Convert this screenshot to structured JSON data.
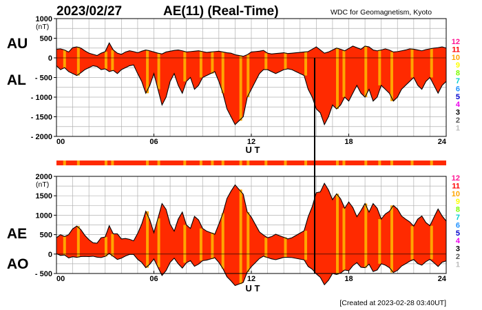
{
  "header": {
    "date": "2023/02/27",
    "title": "AE(11) (Real-Time)",
    "source": "WDC for Geomagnetism, Kyoto"
  },
  "footer": {
    "created": "[Created at 2023-02-28 03:40UT]"
  },
  "colors": {
    "fill": "#ff2a00",
    "stripe": "#ffa500",
    "grid": "#b0b0b0",
    "line": "#000000"
  },
  "station_scale": [
    {
      "label": "12",
      "color": "#ff1493"
    },
    {
      "label": "11",
      "color": "#ff0000"
    },
    {
      "label": "10",
      "color": "#ffa500"
    },
    {
      "label": "9",
      "color": "#ffff00"
    },
    {
      "label": "8",
      "color": "#7cfc00"
    },
    {
      "label": "7",
      "color": "#00ced1"
    },
    {
      "label": "6",
      "color": "#1e90ff"
    },
    {
      "label": "5",
      "color": "#0000cd"
    },
    {
      "label": "4",
      "color": "#ee00ee"
    },
    {
      "label": "3",
      "color": "#000000"
    },
    {
      "label": "2",
      "color": "#555555"
    },
    {
      "label": "1",
      "color": "#bbbbbb"
    }
  ],
  "orange_stripe_hours": [
    0.5,
    1.35,
    3.05,
    3.45,
    5.6,
    6.3,
    7.9,
    8.9,
    9.6,
    10.25,
    11.35,
    11.8,
    12.9,
    14.1,
    15.35,
    17.3,
    17.7,
    19.05,
    19.9,
    20.65,
    21.9,
    23.1
  ],
  "chart_data": [
    {
      "type": "area",
      "panel": "AU/AL",
      "series_labels": [
        "AU",
        "AL"
      ],
      "unit": "(nT)",
      "xlabel": "U T",
      "xlim": [
        0,
        24
      ],
      "xticks": [
        0,
        6,
        12,
        18,
        24
      ],
      "xtick_labels": [
        "00",
        "06",
        "12",
        "18",
        "24"
      ],
      "ylim": [
        -2000,
        1000
      ],
      "yticks": [
        1000,
        500,
        0,
        -500,
        -1000,
        -1500,
        -2000
      ],
      "ytick_labels": [
        "1000",
        "500",
        "0",
        "- 500",
        "- 1000",
        "- 1500",
        "- 2000"
      ],
      "grid": true,
      "x": [
        0,
        0.25,
        0.5,
        0.75,
        1,
        1.25,
        1.5,
        1.75,
        2,
        2.25,
        2.5,
        2.75,
        3,
        3.25,
        3.5,
        3.75,
        4,
        4.25,
        4.5,
        4.75,
        5,
        5.25,
        5.5,
        5.75,
        6,
        6.25,
        6.5,
        6.75,
        7,
        7.25,
        7.5,
        7.75,
        8,
        8.25,
        8.5,
        8.75,
        9,
        9.25,
        9.5,
        9.75,
        10,
        10.25,
        10.5,
        10.75,
        11,
        11.25,
        11.5,
        11.75,
        12,
        12.25,
        12.5,
        12.75,
        13,
        13.25,
        13.5,
        13.75,
        14,
        14.25,
        14.5,
        14.75,
        15,
        15.25,
        15.5,
        15.75,
        16,
        16.25,
        16.5,
        16.75,
        17,
        17.25,
        17.5,
        17.75,
        18,
        18.25,
        18.5,
        18.75,
        19,
        19.25,
        19.5,
        19.75,
        20,
        20.25,
        20.5,
        20.75,
        21,
        21.25,
        21.5,
        21.75,
        22,
        22.25,
        22.5,
        22.75,
        23,
        23.25,
        23.5,
        23.75,
        24
      ],
      "series": [
        {
          "name": "AU",
          "values": [
            220,
            230,
            200,
            150,
            260,
            280,
            250,
            180,
            120,
            90,
            60,
            120,
            160,
            380,
            200,
            120,
            90,
            150,
            180,
            160,
            130,
            170,
            200,
            180,
            150,
            120,
            100,
            150,
            170,
            190,
            200,
            180,
            150,
            160,
            170,
            180,
            160,
            140,
            150,
            160,
            170,
            150,
            130,
            120,
            80,
            60,
            40,
            80,
            150,
            160,
            170,
            190,
            120,
            100,
            110,
            120,
            130,
            110,
            120,
            130,
            140,
            150,
            160,
            220,
            280,
            200,
            120,
            150,
            200,
            250,
            220,
            180,
            240,
            300,
            260,
            220,
            300,
            280,
            200,
            180,
            200,
            230,
            200,
            150,
            160,
            180,
            200,
            230,
            220,
            200,
            180,
            210,
            230,
            250,
            260,
            280,
            250
          ]
        },
        {
          "name": "AL",
          "values": [
            -200,
            -300,
            -250,
            -350,
            -400,
            -450,
            -380,
            -300,
            -250,
            -200,
            -220,
            -300,
            -280,
            -350,
            -320,
            -400,
            -300,
            -250,
            -200,
            -180,
            -400,
            -600,
            -900,
            -700,
            -400,
            -800,
            -1200,
            -1000,
            -600,
            -400,
            -700,
            -900,
            -600,
            -500,
            -800,
            -700,
            -500,
            -450,
            -400,
            -350,
            -600,
            -900,
            -1300,
            -1500,
            -1700,
            -1600,
            -1500,
            -1000,
            -800,
            -600,
            -400,
            -300,
            -300,
            -350,
            -400,
            -350,
            -300,
            -280,
            -300,
            -350,
            -400,
            -450,
            -800,
            -1000,
            -1300,
            -1400,
            -1700,
            -1500,
            -1200,
            -1300,
            -1200,
            -1000,
            -1100,
            -900,
            -700,
            -900,
            -1000,
            -800,
            -1100,
            -1000,
            -700,
            -800,
            -900,
            -1100,
            -1000,
            -800,
            -700,
            -600,
            -500,
            -700,
            -800,
            -600,
            -500,
            -700,
            -900,
            -700,
            -600
          ]
        }
      ],
      "spike": {
        "x": 15.9,
        "from": 0,
        "to": -2000
      }
    },
    {
      "type": "area",
      "panel": "AE/AO",
      "series_labels": [
        "AE",
        "AO"
      ],
      "unit": "(nT)",
      "xlabel": "U T",
      "xlim": [
        0,
        24
      ],
      "xticks": [
        0,
        6,
        12,
        18,
        24
      ],
      "xtick_labels": [
        "00",
        "06",
        "12",
        "18",
        "24"
      ],
      "ylim": [
        -500,
        2000
      ],
      "yticks": [
        2000,
        1500,
        1000,
        500,
        0,
        -500
      ],
      "ytick_labels": [
        "2000",
        "1500",
        "1000",
        "500",
        "0",
        "- 500"
      ],
      "grid": true,
      "x": [
        0,
        0.25,
        0.5,
        0.75,
        1,
        1.25,
        1.5,
        1.75,
        2,
        2.25,
        2.5,
        2.75,
        3,
        3.25,
        3.5,
        3.75,
        4,
        4.25,
        4.5,
        4.75,
        5,
        5.25,
        5.5,
        5.75,
        6,
        6.25,
        6.5,
        6.75,
        7,
        7.25,
        7.5,
        7.75,
        8,
        8.25,
        8.5,
        8.75,
        9,
        9.25,
        9.5,
        9.75,
        10,
        10.25,
        10.5,
        10.75,
        11,
        11.25,
        11.5,
        11.75,
        12,
        12.25,
        12.5,
        12.75,
        13,
        13.25,
        13.5,
        13.75,
        14,
        14.25,
        14.5,
        14.75,
        15,
        15.25,
        15.5,
        15.75,
        16,
        16.25,
        16.5,
        16.75,
        17,
        17.25,
        17.5,
        17.75,
        18,
        18.25,
        18.5,
        18.75,
        19,
        19.25,
        19.5,
        19.75,
        20,
        20.25,
        20.5,
        20.75,
        21,
        21.25,
        21.5,
        21.75,
        22,
        22.25,
        22.5,
        22.75,
        23,
        23.25,
        23.5,
        23.75,
        24
      ],
      "series": [
        {
          "name": "AE",
          "values": [
            420,
            500,
            450,
            500,
            650,
            720,
            630,
            480,
            370,
            290,
            280,
            420,
            440,
            730,
            520,
            520,
            390,
            400,
            380,
            340,
            530,
            770,
            1100,
            880,
            550,
            920,
            1300,
            1150,
            770,
            590,
            900,
            1080,
            750,
            660,
            970,
            880,
            660,
            590,
            550,
            510,
            770,
            1050,
            1430,
            1620,
            1780,
            1660,
            1540,
            1080,
            950,
            760,
            570,
            490,
            420,
            450,
            510,
            470,
            430,
            390,
            420,
            480,
            540,
            600,
            960,
            1220,
            1580,
            1600,
            1820,
            1650,
            1400,
            1550,
            1420,
            1180,
            1340,
            1200,
            960,
            1120,
            1300,
            1080,
            1300,
            1180,
            900,
            1030,
            1100,
            1250,
            1160,
            980,
            900,
            830,
            720,
            900,
            980,
            810,
            730,
            950,
            1160,
            980,
            850
          ]
        },
        {
          "name": "AO",
          "values": [
            10,
            -35,
            -25,
            -100,
            -70,
            -85,
            -65,
            -60,
            -65,
            -55,
            -80,
            -90,
            -60,
            15,
            -60,
            -140,
            -105,
            -50,
            -10,
            -10,
            -135,
            -215,
            -350,
            -260,
            -125,
            -340,
            -550,
            -425,
            -215,
            -105,
            -250,
            -360,
            -225,
            -170,
            -315,
            -260,
            -170,
            -155,
            -125,
            -95,
            -215,
            -375,
            -585,
            -690,
            -810,
            -770,
            -730,
            -460,
            -325,
            -220,
            -115,
            -55,
            -90,
            -125,
            -145,
            -115,
            -85,
            -85,
            -90,
            -110,
            -130,
            -150,
            -320,
            -390,
            -510,
            -600,
            -790,
            -675,
            -500,
            -525,
            -490,
            -410,
            -430,
            -300,
            -220,
            -340,
            -350,
            -260,
            -450,
            -410,
            -250,
            -285,
            -350,
            -475,
            -420,
            -310,
            -250,
            -185,
            -140,
            -245,
            -285,
            -195,
            -135,
            -225,
            -320,
            -210,
            -175
          ]
        }
      ],
      "spike": {
        "x": 15.9,
        "from": 2000,
        "to": -500
      }
    }
  ]
}
